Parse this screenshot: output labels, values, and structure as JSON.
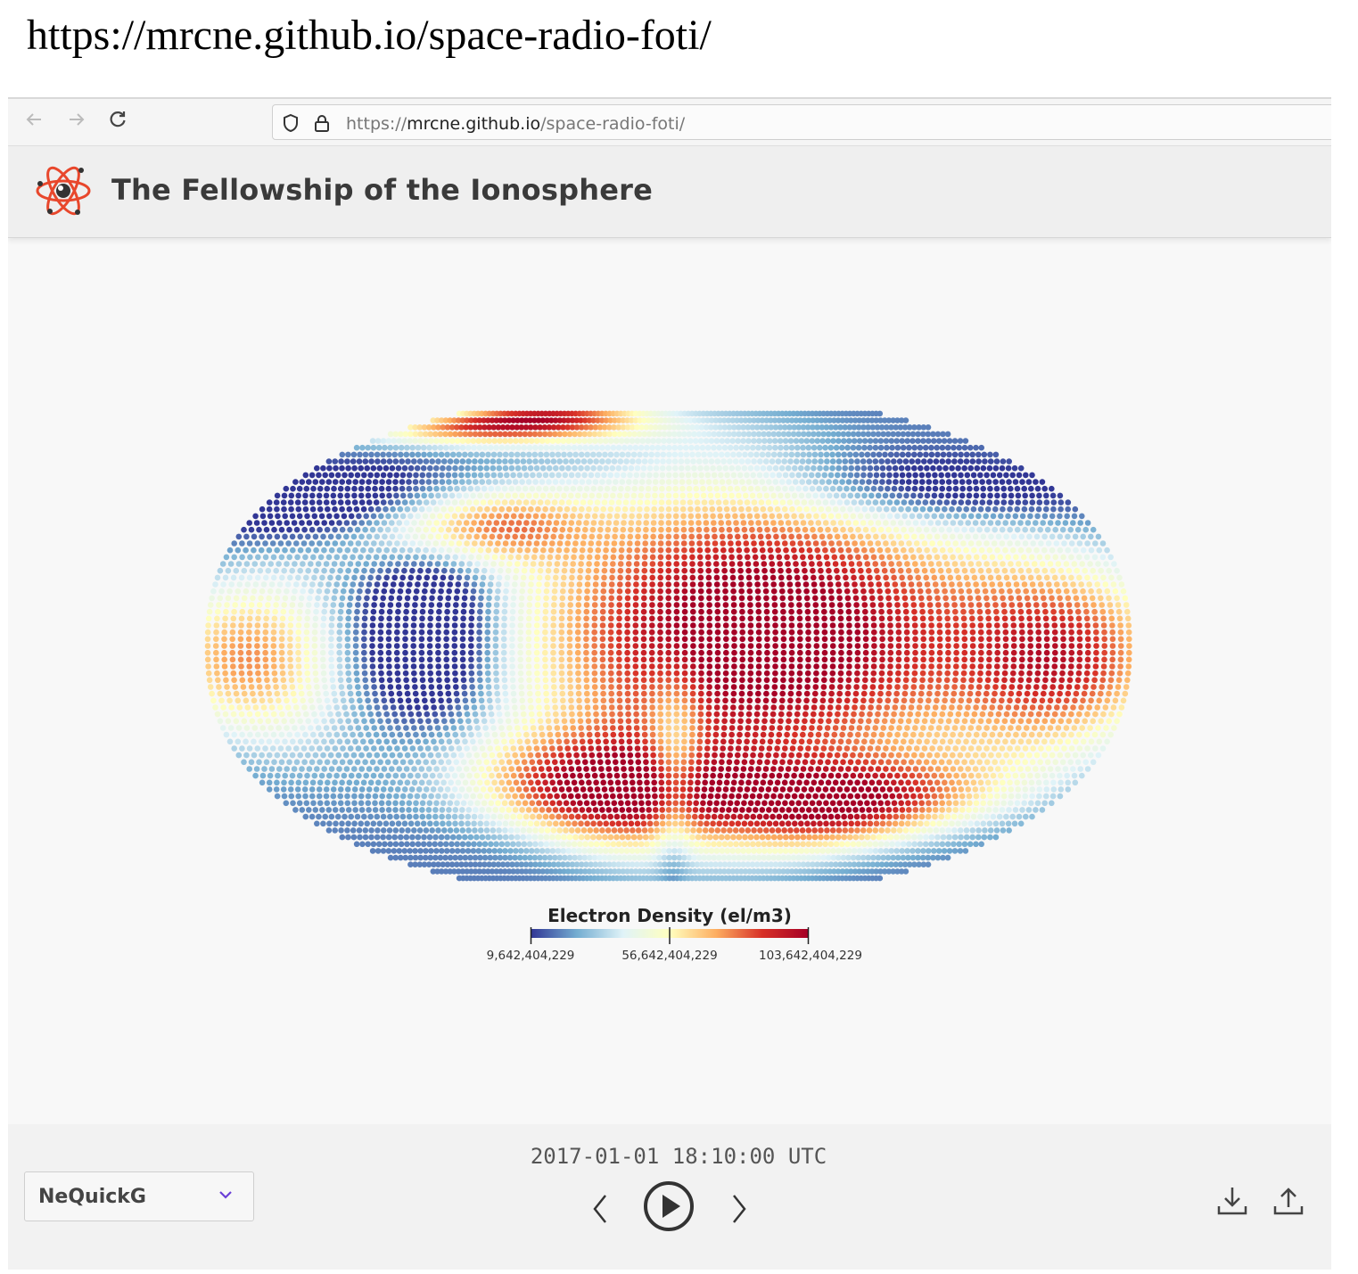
{
  "caption": "https://mrcne.github.io/space-radio-foti/",
  "browser": {
    "url_scheme": "https://",
    "url_host": "mrcne.github.io",
    "url_path": "/space-radio-foti/",
    "back_icon": "arrow-left-icon",
    "forward_icon": "arrow-right-icon",
    "reload_icon": "reload-icon"
  },
  "app": {
    "title": "The Fellowship of the Ionosphere",
    "logo_icon": "atom-icon"
  },
  "map": {
    "projection": "Natural Earth",
    "colormap": [
      "#313695",
      "#74add1",
      "#e0f3f8",
      "#ffffbf",
      "#fdae61",
      "#d73027",
      "#a50026"
    ]
  },
  "legend": {
    "title": "Electron Density (el/m3)",
    "ticks": [
      "9,642,404,229",
      "56,642,404,229",
      "103,642,404,229"
    ]
  },
  "controls": {
    "timestamp": "2017-01-01 18:10:00 UTC",
    "model": "NeQuickG",
    "prev_icon": "chevron-left-icon",
    "play_icon": "play-icon",
    "next_icon": "chevron-right-icon",
    "download_icon": "download-icon",
    "upload_icon": "upload-icon"
  }
}
